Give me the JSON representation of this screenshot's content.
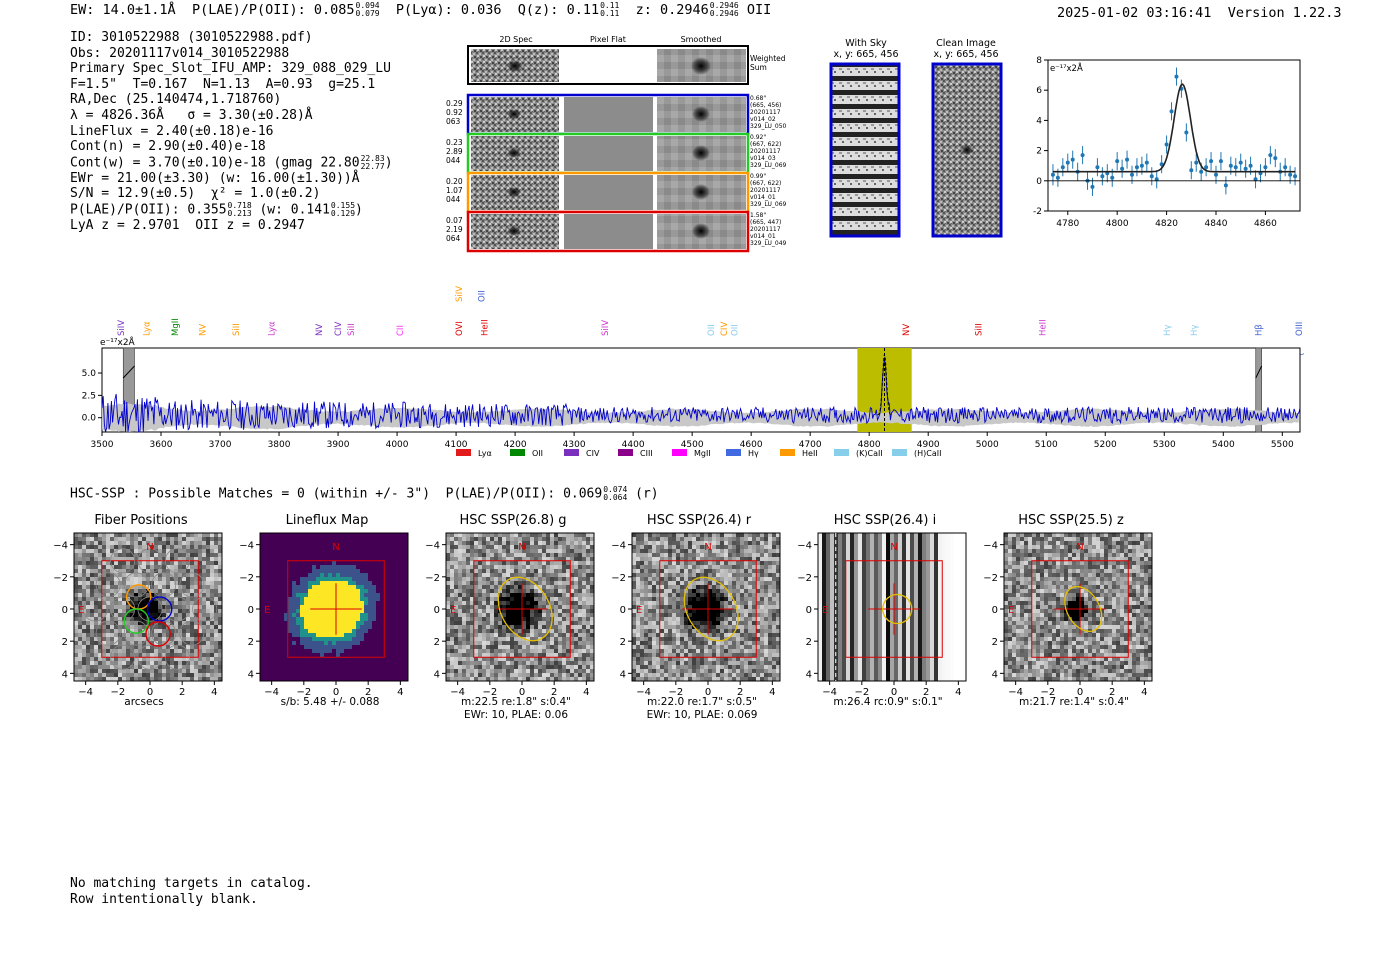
{
  "header": {
    "ew": "EW: 14.0±1.1Å",
    "plae_label": "P(LAE)/P(OII): 0.085",
    "plae_hi": "0.094",
    "plae_lo": "0.079",
    "plya": "P(Lyα): 0.036",
    "qz_label": "Q(z): 0.11",
    "qz_hi": "0.11",
    "qz_lo": "0.11",
    "z_label": "z: 0.2946",
    "z_hi": "0.2946",
    "z_lo": "0.2946",
    "z_line": "OII",
    "timestamp": "2025-01-02 03:16:41",
    "version": "Version 1.22.3"
  },
  "info": {
    "id": "ID: 3010522988 (3010522988.pdf)",
    "obs": "Obs: 20201117v014_3010522988",
    "primary": "Primary Spec_Slot_IFU_AMP: 329_088_029_LU",
    "fparams": "F=1.5\"  T=0.167  N=1.13  A=0.93  g=25.1",
    "radec": "RA,Dec (25.140474,1.718760)",
    "lambda": "λ = 4826.36Å   σ = 3.30(±0.28)Å",
    "lineflux": "LineFlux = 2.40(±0.18)e-16",
    "contn": "Cont(n) = 2.90(±0.40)e-18",
    "contw_label": "Cont(w) = 3.70(±0.10)e-18 (gmag 22.80",
    "contw_hi": "22.83",
    "contw_lo": "22.77",
    "contw_tail": ")",
    "ewr": "EWr = 21.00(±3.30) (w: 16.00(±1.30))Å",
    "sn": "S/N = 12.9(±0.5)  χ² = 1.0(±0.2)",
    "plae_label": "P(LAE)/P(OII): 0.355",
    "plae_hi": "0.718",
    "plae_lo": "0.213",
    "plae_w": "(w: 0.141",
    "plae_w_hi": "0.155",
    "plae_w_lo": "0.129",
    "plae_w_tail": ")",
    "lyaz": "LyA z = 2.9701  OII z = 0.2947"
  },
  "cutouts": {
    "col_labels": [
      "2D Spec",
      "Pixel Flat",
      "Smoothed"
    ],
    "weighted_sum": "Weighted Sum",
    "rows": [
      {
        "left": [
          "0.29",
          "0.92",
          "063"
        ],
        "right": [
          "0.68\"",
          "(665, 456)",
          "20201117",
          "v014_02",
          "329_LU_050"
        ],
        "color": "#0000cc"
      },
      {
        "left": [
          "0.23",
          "2.89",
          "044"
        ],
        "right": [
          "0.92\"",
          "(667, 622)",
          "20201117",
          "v014_03",
          "329_LU_069"
        ],
        "color": "#22cc22"
      },
      {
        "left": [
          "0.20",
          "1.07",
          "044"
        ],
        "right": [
          "0.99\"",
          "(667, 622)",
          "20201117",
          "v014_01",
          "329_LU_069"
        ],
        "color": "#ff9900"
      },
      {
        "left": [
          "0.07",
          "2.19",
          "064"
        ],
        "right": [
          "1.58\"",
          "(665, 447)",
          "20201117",
          "v014_01",
          "329_LU_049"
        ],
        "color": "#dd0000"
      }
    ]
  },
  "sky": {
    "with_sky_title": "With Sky",
    "with_sky_coords": "x, y: 665, 456",
    "clean_title": "Clean Image",
    "clean_coords": "x, y: 665, 456"
  },
  "chart_data": [
    {
      "type": "scatter",
      "name": "line-fit",
      "ylabel_note": "e⁻¹⁷x2Å",
      "xlim": [
        4772,
        4874
      ],
      "ylim": [
        -2,
        8
      ],
      "xticks": [
        4780,
        4800,
        4820,
        4840,
        4860
      ],
      "yticks": [
        -2,
        0,
        2,
        4,
        6,
        8
      ],
      "x": [
        4774,
        4776,
        4778,
        4780,
        4782,
        4784,
        4786,
        4788,
        4790,
        4792,
        4794,
        4796,
        4798,
        4800,
        4802,
        4804,
        4806,
        4808,
        4810,
        4812,
        4814,
        4816,
        4818,
        4820,
        4822,
        4824,
        4826,
        4828,
        4830,
        4832,
        4834,
        4836,
        4838,
        4840,
        4842,
        4844,
        4846,
        4848,
        4850,
        4852,
        4854,
        4856,
        4858,
        4860,
        4862,
        4864,
        4866,
        4868,
        4870,
        4872
      ],
      "y": [
        0.4,
        0.2,
        0.9,
        1.2,
        1.4,
        0.6,
        1.7,
        0.0,
        -0.4,
        0.9,
        0.3,
        0.5,
        0.2,
        1.3,
        0.8,
        1.4,
        0.4,
        0.9,
        1.0,
        1.2,
        0.3,
        0.1,
        1.1,
        2.4,
        4.6,
        6.9,
        6.1,
        3.2,
        0.7,
        1.2,
        0.6,
        0.9,
        1.3,
        0.4,
        1.3,
        -0.3,
        1.0,
        0.9,
        1.2,
        0.8,
        1.0,
        0.1,
        0.5,
        0.9,
        1.7,
        1.5,
        0.6,
        0.9,
        0.4,
        0.3
      ],
      "err": [
        0.7,
        0.6,
        0.6,
        0.6,
        0.6,
        0.6,
        0.6,
        0.6,
        0.6,
        0.6,
        0.6,
        0.6,
        0.6,
        0.6,
        0.6,
        0.6,
        0.6,
        0.6,
        0.6,
        0.6,
        0.6,
        0.6,
        0.6,
        0.6,
        0.6,
        0.6,
        0.6,
        0.6,
        0.6,
        0.6,
        0.6,
        0.6,
        0.6,
        0.6,
        0.6,
        0.6,
        0.6,
        0.6,
        0.6,
        0.6,
        0.6,
        0.6,
        0.6,
        0.6,
        0.6,
        0.6,
        0.6,
        0.6,
        0.6,
        0.6
      ],
      "fit": {
        "center": 4826.36,
        "sigma": 3.3,
        "amplitude": 5.8,
        "continuum": 0.6
      }
    },
    {
      "type": "line",
      "name": "full-spectrum",
      "ylabel_note": "e⁻¹⁷x2Å",
      "xlim": [
        3500,
        5530
      ],
      "ylim": [
        -1.6,
        7.8
      ],
      "xticks": [
        3500,
        3600,
        3700,
        3800,
        3900,
        4000,
        4100,
        4200,
        4300,
        4400,
        4500,
        4600,
        4700,
        4800,
        4900,
        5000,
        5100,
        5200,
        5300,
        5400,
        5500
      ],
      "yticks": [
        0.0,
        2.5,
        5.0
      ],
      "ytick_labels": [
        "0.0",
        "2.5",
        "5.0"
      ],
      "highlight_band": [
        4780,
        4872
      ],
      "masked_bands": [
        [
          3536,
          3555
        ],
        [
          5455,
          5465
        ]
      ],
      "line_markers": [
        {
          "label": "SiIV",
          "x": 3532,
          "color": "#7b2fbe"
        },
        {
          "label": "Lyα",
          "x": 3575,
          "color": "#ff9900"
        },
        {
          "label": "MgII",
          "x": 3624,
          "color": "#008800"
        },
        {
          "label": "NV",
          "x": 3670,
          "color": "#ff9900"
        },
        {
          "label": "SiII",
          "x": 3727,
          "color": "#ff9900"
        },
        {
          "label": "Lyα",
          "x": 3787,
          "color": "#cc33cc"
        },
        {
          "label": "NV",
          "x": 3868,
          "color": "#7b2fbe"
        },
        {
          "label": "CIV",
          "x": 3900,
          "color": "#7b2fbe"
        },
        {
          "label": "SiII",
          "x": 3922,
          "color": "#cc33cc"
        },
        {
          "label": "CII",
          "x": 4005,
          "color": "#ff33ff"
        },
        {
          "label": "OVI",
          "x": 4105,
          "color": "#dd0000"
        },
        {
          "label": "SiIV",
          "x": 4105,
          "color": "#ff9900",
          "high": true
        },
        {
          "label": "OII",
          "x": 4143,
          "color": "#4060d0",
          "high": true
        },
        {
          "label": "HeII",
          "x": 4148,
          "color": "#dd0000"
        },
        {
          "label": "SiIV",
          "x": 4352,
          "color": "#cc33cc"
        },
        {
          "label": "OII",
          "x": 4532,
          "color": "#88ccee"
        },
        {
          "label": "CIV",
          "x": 4554,
          "color": "#ff9900"
        },
        {
          "label": "OII",
          "x": 4572,
          "color": "#88ccee"
        },
        {
          "label": "NV",
          "x": 4862,
          "color": "#dd0000"
        },
        {
          "label": "SiII",
          "x": 4985,
          "color": "#dd0000"
        },
        {
          "label": "HeII",
          "x": 5094,
          "color": "#cc33cc"
        },
        {
          "label": "Hγ",
          "x": 5305,
          "color": "#88ccee"
        },
        {
          "label": "Hγ",
          "x": 5350,
          "color": "#88ccee"
        },
        {
          "label": "Hβ",
          "x": 5460,
          "color": "#4060d0"
        },
        {
          "label": "OIII",
          "x": 5528,
          "color": "#4060d0"
        }
      ],
      "legend": [
        {
          "label": "Lyα",
          "color": "#e31a1c"
        },
        {
          "label": "OII",
          "color": "#008800"
        },
        {
          "label": "CIV",
          "color": "#7b2fbe"
        },
        {
          "label": "CIII",
          "color": "#8b008b"
        },
        {
          "label": "MgII",
          "color": "#ff00ff"
        },
        {
          "label": "Hγ",
          "color": "#4169e1"
        },
        {
          "label": "HeII",
          "color": "#ff9900"
        },
        {
          "label": "(K)CaII",
          "color": "#87ceeb"
        },
        {
          "label": "(H)CaII",
          "color": "#87ceeb"
        }
      ],
      "series": [
        {
          "name": "flux",
          "color": "#0000cc",
          "peak_x": 4826,
          "peak_y": 7.1
        },
        {
          "name": "error",
          "color": "#bbbbbb"
        }
      ]
    }
  ],
  "hsc": {
    "summary": "HSC-SSP : Possible Matches = 0 (within +/- 3\")  P(LAE)/P(OII): 0.069",
    "summary_hi": "0.074",
    "summary_lo": "0.064",
    "summary_tail": "(r)",
    "panels": [
      {
        "title": "Fiber Positions",
        "caption1": "arcsecs",
        "caption2": ""
      },
      {
        "title": "Lineflux Map",
        "caption1": "s/b: 5.48 +/- 0.088",
        "caption2": ""
      },
      {
        "title": "HSC SSP(26.8) g",
        "caption1": "m:22.5  re:1.8\"  s:0.4\"",
        "caption2": "EWr: 10, PLAE: 0.06"
      },
      {
        "title": "HSC SSP(26.4) r",
        "caption1": "m:22.0  re:1.7\"  s:0.5\"",
        "caption2": "EWr: 10, PLAE: 0.069"
      },
      {
        "title": "HSC SSP(26.4) i",
        "caption1": "m:26.4 rc:0.9\"  s:0.1\"",
        "caption2": ""
      },
      {
        "title": "HSC SSP(25.5) z",
        "caption1": "m:21.7  re:1.4\"  s:0.4\"",
        "caption2": ""
      }
    ],
    "ticks": [
      "−4",
      "−2",
      "0",
      "2",
      "4"
    ],
    "north": "N",
    "east": "E"
  },
  "footer": {
    "line1": "No matching targets in catalog.",
    "line2": "Row intentionally blank."
  }
}
